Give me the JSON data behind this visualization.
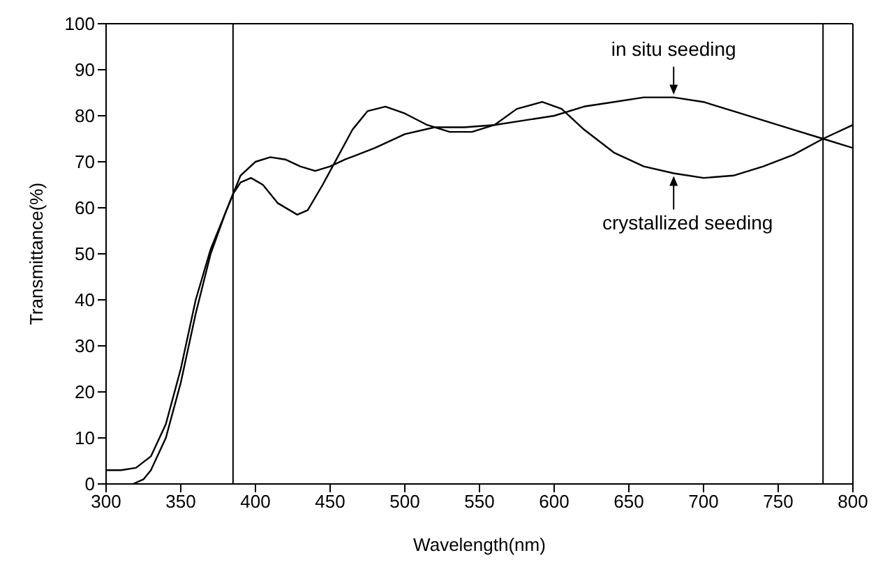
{
  "chart_data": {
    "type": "line",
    "xlabel": "Wavelength(nm)",
    "ylabel": "Transmittance(%)",
    "xlim": [
      300,
      800
    ],
    "xticks": [
      300,
      350,
      400,
      450,
      500,
      550,
      600,
      650,
      700,
      750,
      800
    ],
    "ylim": [
      0,
      100
    ],
    "yticks": [
      0,
      10,
      20,
      30,
      40,
      50,
      60,
      70,
      80,
      90,
      100
    ],
    "marker": "none",
    "line_style": "solid",
    "series": [
      {
        "color": "#000000",
        "x": [
          300,
          310,
          320,
          330,
          340,
          350,
          360,
          370,
          380,
          385,
          390,
          400,
          410,
          420,
          430,
          440,
          450,
          460,
          480,
          500,
          520,
          540,
          560,
          580,
          600,
          620,
          640,
          660,
          680,
          700,
          720,
          740,
          760,
          780,
          800
        ],
        "values": [
          3,
          3,
          3.5,
          6,
          13,
          25,
          40,
          51,
          59,
          63,
          67,
          70,
          71,
          70.5,
          69,
          68,
          69,
          70.5,
          73,
          76,
          77.5,
          77.5,
          78,
          79,
          80,
          82,
          83,
          84,
          84,
          83,
          81,
          79,
          77,
          75,
          73
        ]
      },
      {
        "color": "#000000",
        "x": [
          318,
          325,
          330,
          340,
          350,
          360,
          370,
          380,
          385,
          390,
          397,
          405,
          415,
          428,
          435,
          445,
          455,
          465,
          475,
          487,
          500,
          515,
          530,
          545,
          560,
          575,
          592,
          605,
          620,
          640,
          660,
          680,
          700,
          720,
          740,
          760,
          780,
          800
        ],
        "values": [
          0,
          1,
          3,
          10,
          22,
          37,
          50,
          59,
          63,
          65.5,
          66.5,
          65,
          61,
          58.5,
          59.5,
          65,
          71,
          77,
          81,
          82,
          80.5,
          78,
          76.5,
          76.5,
          78,
          81.5,
          83,
          81.5,
          77,
          72,
          69,
          67.5,
          66.5,
          67,
          69,
          71.5,
          75,
          78
        ]
      }
    ],
    "ref_lines": [
      {
        "axis": "x",
        "value": 385,
        "color": "#000000"
      },
      {
        "axis": "x",
        "value": 780,
        "color": "#000000"
      }
    ],
    "annotations": [
      {
        "text": "in situ seeding",
        "x": 680,
        "y": 84
      },
      {
        "text": "crystallized seeding",
        "x": 680,
        "y": 67.5
      }
    ]
  }
}
